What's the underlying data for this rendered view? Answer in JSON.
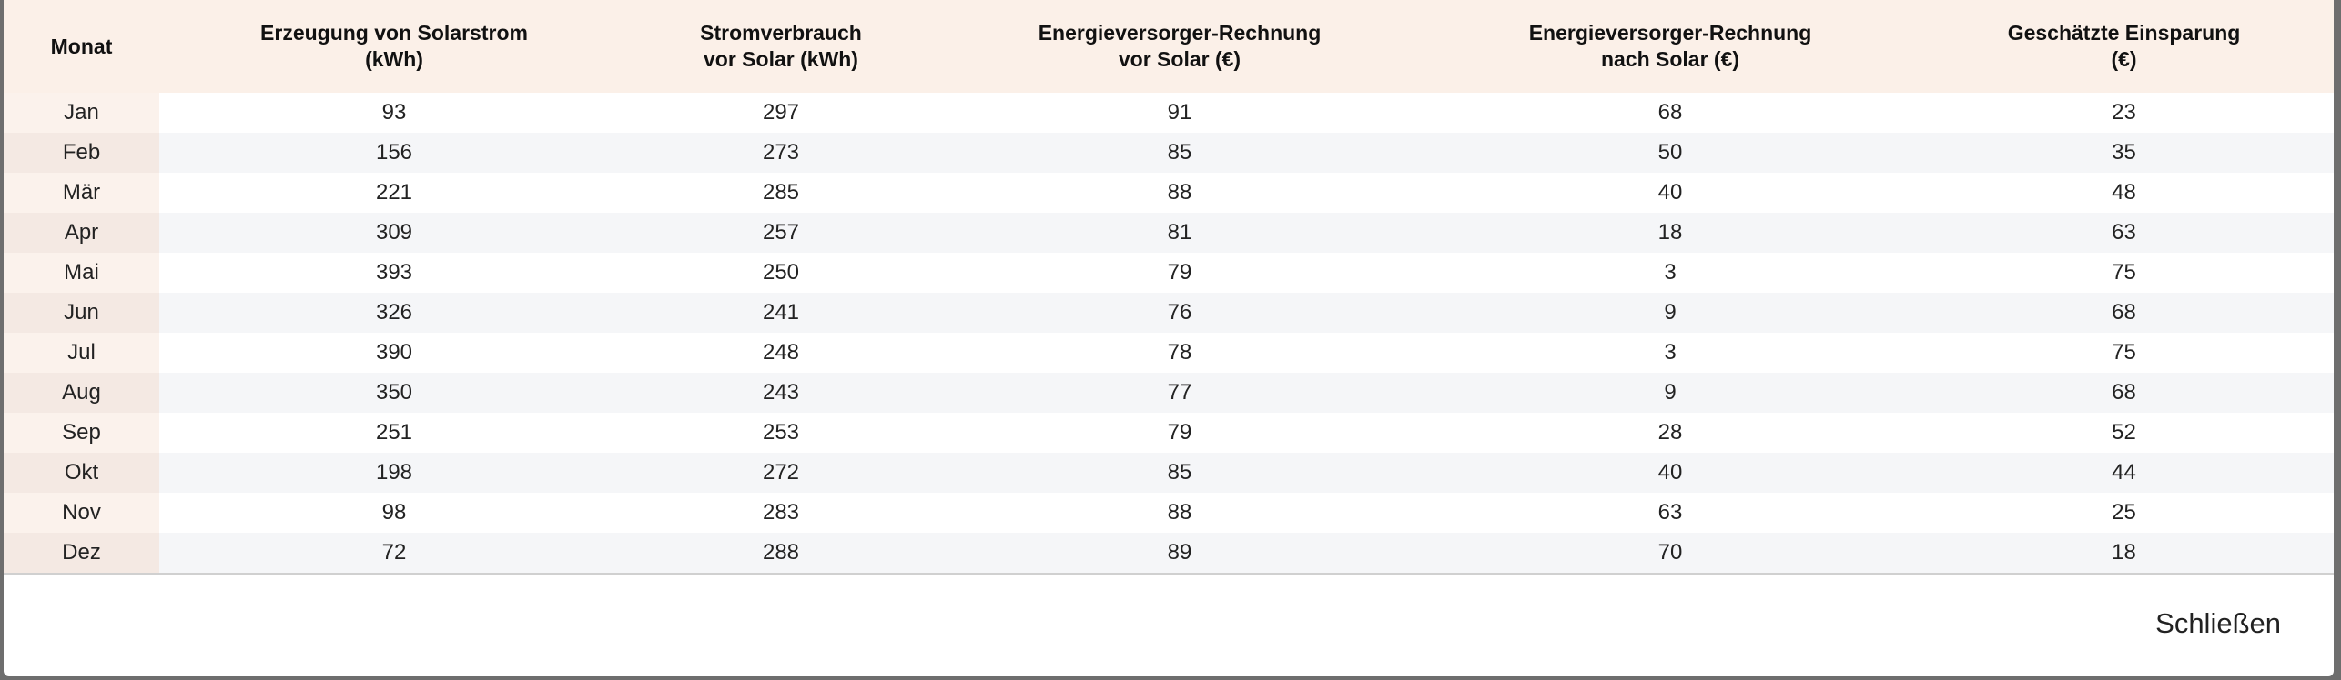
{
  "table": {
    "columns": [
      "Monat",
      "Erzeugung von Solarstrom\n(kWh)",
      "Stromverbrauch\nvor Solar (kWh)",
      "Energieversorger-Rechnung\nvor Solar (€)",
      "Energieversorger-Rechnung\nnach Solar (€)",
      "Geschätzte Einsparung\n(€)"
    ],
    "rows": [
      [
        "Jan",
        93,
        297,
        91,
        68,
        23
      ],
      [
        "Feb",
        156,
        273,
        85,
        50,
        35
      ],
      [
        "Mär",
        221,
        285,
        88,
        40,
        48
      ],
      [
        "Apr",
        309,
        257,
        81,
        18,
        63
      ],
      [
        "Mai",
        393,
        250,
        79,
        3,
        75
      ],
      [
        "Jun",
        326,
        241,
        76,
        9,
        68
      ],
      [
        "Jul",
        390,
        248,
        78,
        3,
        75
      ],
      [
        "Aug",
        350,
        243,
        77,
        9,
        68
      ],
      [
        "Sep",
        251,
        253,
        79,
        28,
        52
      ],
      [
        "Okt",
        198,
        272,
        85,
        40,
        44
      ],
      [
        "Nov",
        98,
        283,
        88,
        63,
        25
      ],
      [
        "Dez",
        72,
        288,
        89,
        70,
        18
      ]
    ]
  },
  "footer": {
    "close_button": "Schließen"
  }
}
